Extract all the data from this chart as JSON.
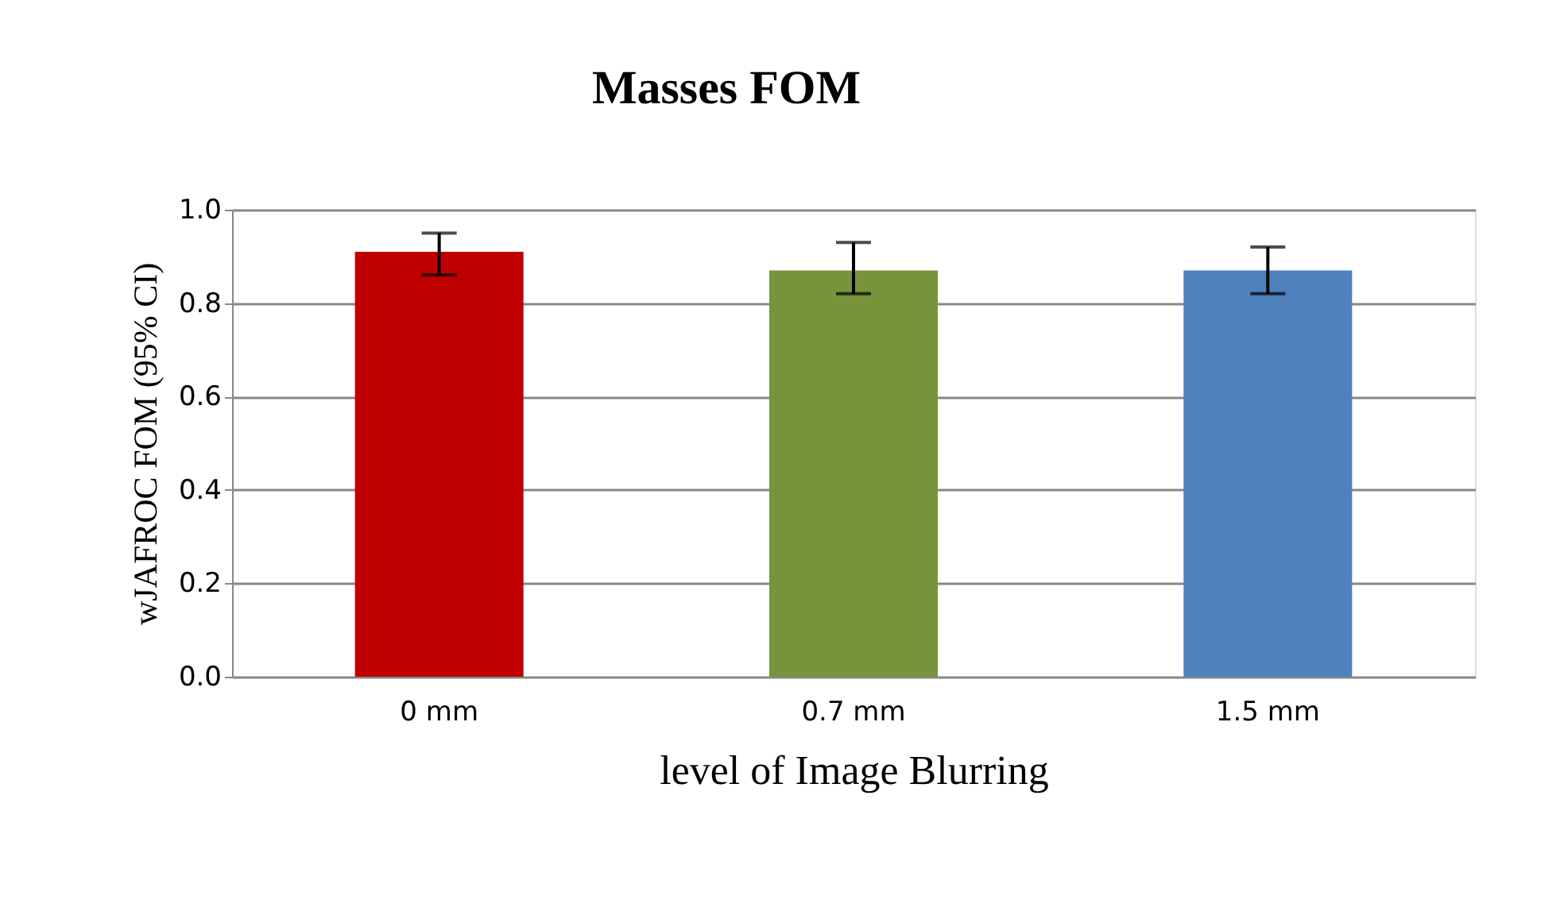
{
  "chart_data": {
    "type": "bar",
    "title": "Masses FOM",
    "xlabel": "level of Image Blurring",
    "ylabel": "wJAFROC FOM (95% CI)",
    "categories": [
      "0 mm",
      "0.7 mm",
      "1.5 mm"
    ],
    "values": [
      0.91,
      0.87,
      0.87
    ],
    "colors": [
      "#c00000",
      "#77933c",
      "#4f81bd"
    ],
    "errors": [
      [
        0.86,
        0.95
      ],
      [
        0.82,
        0.93
      ],
      [
        0.82,
        0.92
      ]
    ],
    "ylim": [
      0,
      1.0
    ],
    "yticks": [
      {
        "value": 0,
        "label": "0.0"
      },
      {
        "value": 0.2,
        "label": "0.2"
      },
      {
        "value": 0.4,
        "label": "0.4"
      },
      {
        "value": 0.6,
        "label": "0.6"
      },
      {
        "value": 0.8,
        "label": "0.8"
      },
      {
        "value": 1.0,
        "label": "1.0"
      }
    ],
    "grid": "y"
  }
}
